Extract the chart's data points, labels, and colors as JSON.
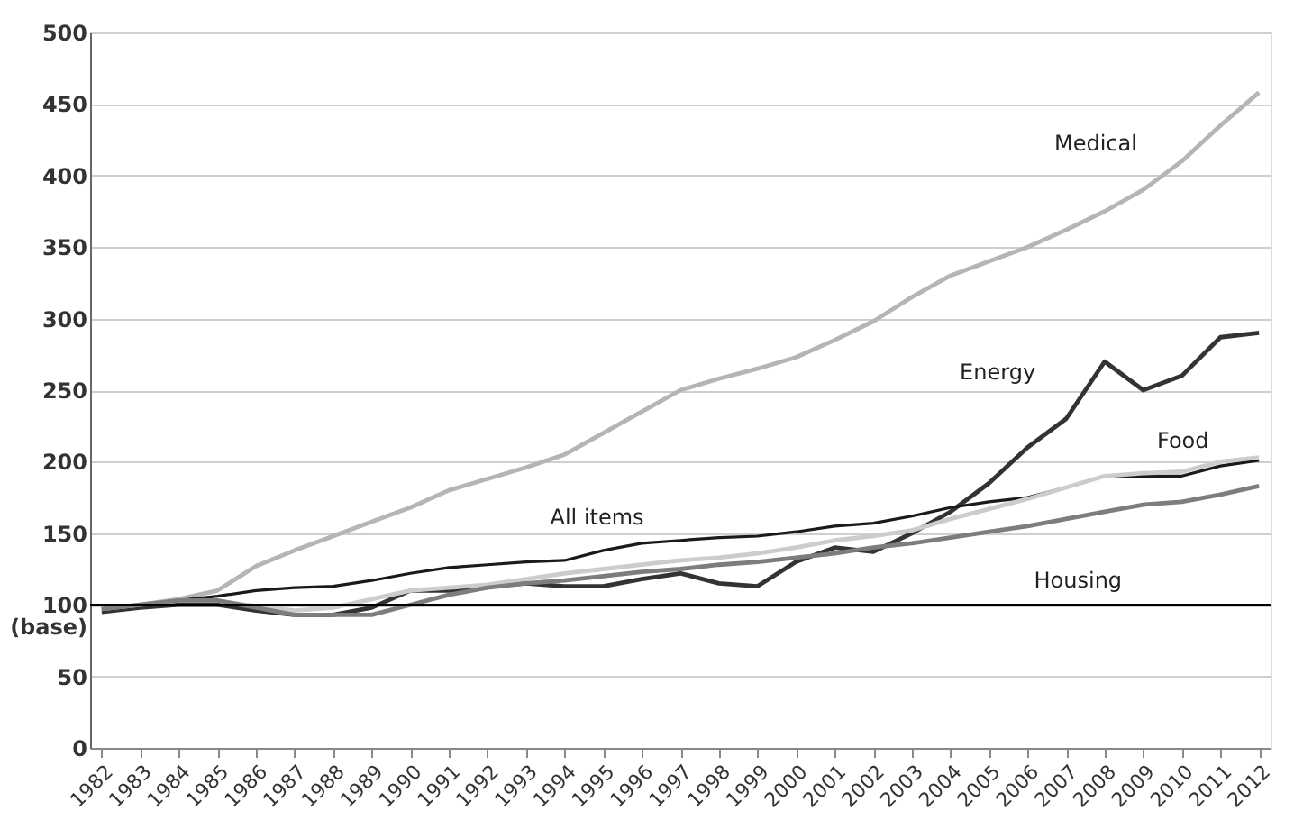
{
  "chart_data": {
    "type": "line",
    "categories": [
      "1982",
      "1983",
      "1984",
      "1985",
      "1986",
      "1987",
      "1988",
      "1989",
      "1990",
      "1991",
      "1992",
      "1993",
      "1994",
      "1995",
      "1996",
      "1997",
      "1998",
      "1999",
      "2000",
      "2001",
      "2002",
      "2003",
      "2004",
      "2005",
      "2006",
      "2007",
      "2008",
      "2009",
      "2010",
      "2011",
      "2012"
    ],
    "series": [
      {
        "name": "Medical",
        "color": "#b5b5b5",
        "values": [
          97,
          100,
          104,
          110,
          127,
          138,
          148,
          158,
          168,
          180,
          188,
          196,
          205,
          220,
          235,
          250,
          258,
          265,
          273,
          285,
          298,
          315,
          330,
          340,
          350,
          362,
          375,
          390,
          410,
          435,
          458
        ]
      },
      {
        "name": "Energy",
        "color": "#333333",
        "values": [
          95,
          98,
          100,
          100,
          96,
          93,
          93,
          98,
          110,
          110,
          113,
          115,
          113,
          113,
          118,
          122,
          115,
          113,
          130,
          140,
          137,
          150,
          165,
          185,
          210,
          230,
          270,
          250,
          260,
          287,
          290
        ]
      },
      {
        "name": "All items",
        "color": "#1a1a1a",
        "values": [
          97,
          100,
          103,
          106,
          110,
          112,
          113,
          117,
          122,
          126,
          128,
          130,
          131,
          138,
          143,
          145,
          147,
          148,
          151,
          155,
          157,
          162,
          168,
          172,
          175,
          182,
          190,
          190,
          190,
          197,
          201
        ]
      },
      {
        "name": "Food",
        "color": "#cccccc",
        "values": [
          97,
          100,
          103,
          103,
          99,
          96,
          98,
          104,
          110,
          112,
          114,
          118,
          122,
          125,
          128,
          131,
          133,
          136,
          140,
          145,
          148,
          152,
          160,
          167,
          174,
          182,
          190,
          192,
          193,
          200,
          203
        ]
      },
      {
        "name": "Housing",
        "color": "#7d7d7d",
        "values": [
          97,
          100,
          103,
          103,
          98,
          93,
          93,
          93,
          100,
          107,
          112,
          115,
          117,
          120,
          123,
          125,
          128,
          130,
          133,
          136,
          140,
          143,
          147,
          151,
          155,
          160,
          165,
          170,
          172,
          177,
          183
        ]
      }
    ],
    "ylim": [
      0,
      500
    ],
    "yticks": [
      0,
      50,
      {
        "value": 100,
        "label": "100 (base)"
      },
      150,
      200,
      250,
      300,
      350,
      400,
      450,
      500
    ],
    "ref_lines": [
      {
        "axis": "y",
        "value": 100,
        "color": "#000000"
      }
    ],
    "grid": "y",
    "marker": "none",
    "line_style": "solid"
  }
}
